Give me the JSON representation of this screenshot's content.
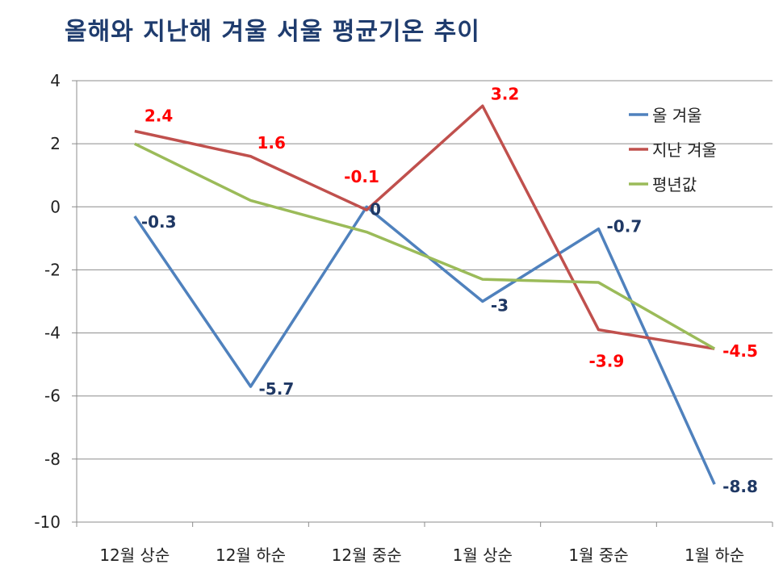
{
  "chart_data": {
    "type": "line",
    "title": "올해와 지난해 겨울 서울 평균기온 추이",
    "categories": [
      "12월 상순",
      "12월 하순",
      "12월 중순",
      "1월 상순",
      "1월 중순",
      "1월 하순"
    ],
    "ylim": [
      -10,
      4
    ],
    "yticks": [
      4,
      2,
      0,
      -2,
      -4,
      -6,
      -8,
      -10
    ],
    "grid": true,
    "legend_position": "top-right",
    "series": [
      {
        "name": "올 겨울",
        "values": [
          -0.3,
          -5.7,
          0,
          -3,
          -0.7,
          -8.8
        ],
        "color": "#4F81BD",
        "labels": [
          "-0.3",
          "-5.7",
          "0",
          "-3",
          "-0.7",
          "-8.8"
        ],
        "label_color": "#1F3864"
      },
      {
        "name": "지난 겨울",
        "values": [
          2.4,
          1.6,
          -0.1,
          3.2,
          -3.9,
          -4.5
        ],
        "color": "#C0504D",
        "labels": [
          "2.4",
          "1.6",
          "-0.1",
          "3.2",
          "-3.9",
          "-4.5"
        ],
        "label_color": "#FF0000"
      },
      {
        "name": "평년값",
        "values": [
          2.0,
          0.2,
          -0.8,
          -2.3,
          -2.4,
          -4.5
        ],
        "color": "#9BBB59",
        "labels": [],
        "label_color": "#9BBB59"
      }
    ]
  }
}
